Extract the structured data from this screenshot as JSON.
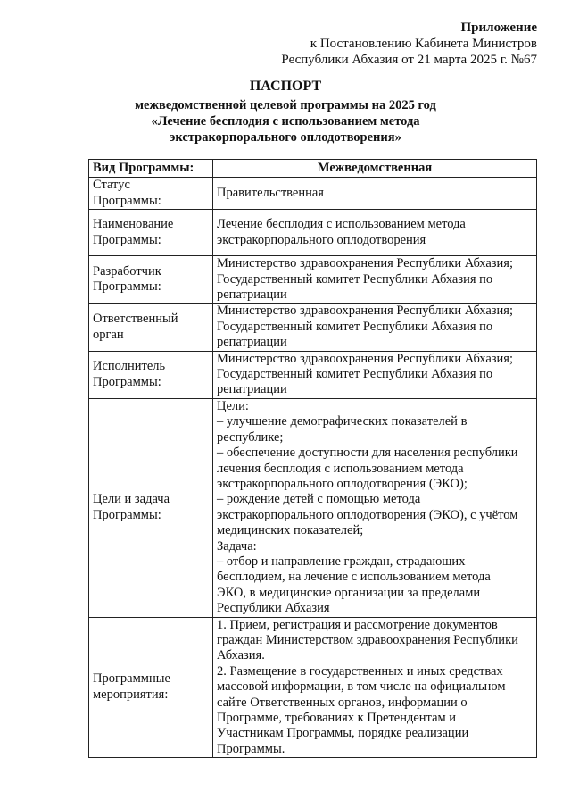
{
  "header": {
    "appendix": "Приложение",
    "line1": "к Постановлению Кабинета Министров",
    "line2": "Республики Абхазия от 21 марта 2025 г. №67"
  },
  "title": {
    "main": "ПАСПОРТ",
    "sub1": "межведомственной целевой программы на 2025 год",
    "sub2": "«Лечение бесплодия с использованием метода",
    "sub3": "экстракорпорального оплодотворения»"
  },
  "table": {
    "header": {
      "label": "Вид Программы:",
      "value": "Межведомственная"
    },
    "rows": [
      {
        "label": "Статус\nПрограммы:",
        "value": "Правительственная"
      },
      {
        "label": "Наименование\nПрограммы:",
        "value": "Лечение бесплодия с использованием метода\nэкстракорпорального оплодотворения"
      },
      {
        "label": "Разработчик\nПрограммы:",
        "value": "Министерство здравоохранения Республики Абхазия;\nГосударственный комитет Республики Абхазия по\nрепатриации"
      },
      {
        "label": "Ответственный\nорган",
        "value": "Министерство здравоохранения Республики Абхазия;\nГосударственный комитет Республики Абхазия по\nрепатриации"
      },
      {
        "label": "Исполнитель\nПрограммы:",
        "value": "Министерство здравоохранения Республики Абхазия;\nГосударственный комитет Республики Абхазия по\nрепатриации"
      },
      {
        "label": "Цели и задача\nПрограммы:",
        "value": "Цели:\n– улучшение демографических показателей в\nреспублике;\n– обеспечение доступности для населения республики\nлечения бесплодия с использованием метода\nэкстракорпорального оплодотворения (ЭКО);\n– рождение детей с помощью метода\nэкстракорпорального оплодотворения (ЭКО), с учётом\nмедицинских показателей;\nЗадача:\n– отбор и направление граждан, страдающих\nбесплодием, на лечение с использованием метода\nЭКО, в медицинские организации за пределами\nРеспублики Абхазия"
      },
      {
        "label": "Программные\nмероприятия:",
        "value": "1. Прием, регистрация и рассмотрение документов\nграждан Министерством здравоохранения Республики\nАбхазия.\n2. Размещение в государственных и иных средствах\nмассовой информации, в том числе на официальном\nсайте Ответственных органов, информации о\nПрограмме, требованиях к Претендентам и\nУчастникам Программы, порядке реализации\nПрограммы."
      }
    ]
  }
}
